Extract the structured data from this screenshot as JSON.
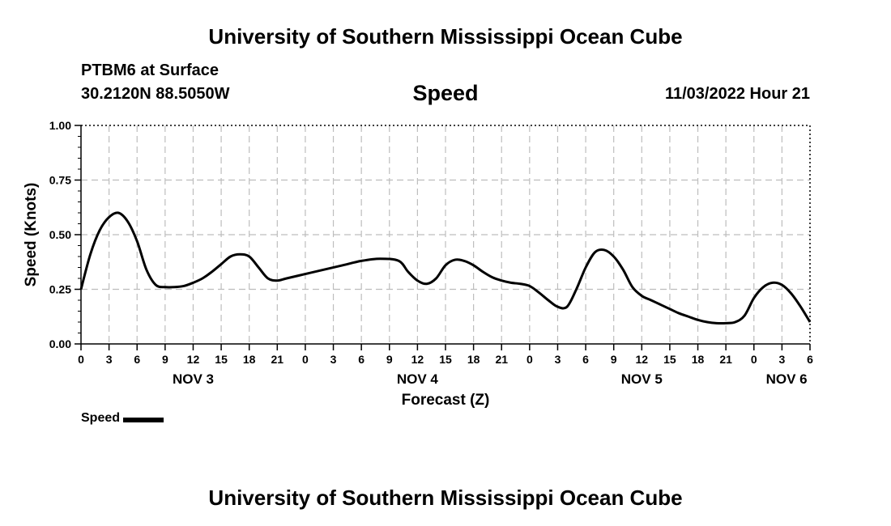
{
  "header": {
    "title": "University of Southern Mississippi Ocean Cube",
    "station": "PTBM6 at Surface",
    "coords": "30.2120N  88.5050W",
    "datetime": "11/03/2022 Hour 21"
  },
  "footer": {
    "title": "University of Southern Mississippi Ocean Cube"
  },
  "chart_data": {
    "type": "line",
    "title": "Speed",
    "xlabel": "Forecast (Z)",
    "ylabel": "Speed (Knots)",
    "ylim": [
      0,
      1
    ],
    "xlim": [
      0,
      78
    ],
    "yticks": [
      0,
      0.25,
      0.5,
      0.75,
      1
    ],
    "ytick_labels": [
      "0.00",
      "0.25",
      "0.50",
      "0.75",
      "1.00"
    ],
    "xticks": [
      0,
      3,
      6,
      9,
      12,
      15,
      18,
      21,
      24,
      27,
      30,
      33,
      36,
      39,
      42,
      45,
      48,
      51,
      54,
      57,
      60,
      63,
      66,
      69,
      72,
      75,
      78
    ],
    "xtick_labels": [
      "0",
      "3",
      "6",
      "9",
      "12",
      "15",
      "18",
      "21",
      "0",
      "3",
      "6",
      "9",
      "12",
      "15",
      "18",
      "21",
      "0",
      "3",
      "6",
      "9",
      "12",
      "15",
      "18",
      "21",
      "0",
      "3",
      "6"
    ],
    "day_labels": [
      {
        "label": "NOV 3",
        "at": 12
      },
      {
        "label": "NOV 4",
        "at": 36
      },
      {
        "label": "NOV 5",
        "at": 60
      },
      {
        "label": "NOV 6",
        "at": 75.5
      }
    ],
    "grid": true,
    "legend": "bottom-left",
    "series": [
      {
        "name": "Speed",
        "color": "#000000",
        "x": [
          0,
          1,
          2,
          3,
          4,
          5,
          6,
          7,
          8,
          9,
          10,
          11,
          12,
          13,
          14,
          15,
          16,
          17,
          18,
          19,
          20,
          21,
          22,
          24,
          26,
          28,
          30,
          32,
          34,
          35,
          36,
          37,
          38,
          39,
          40,
          41,
          42,
          43,
          44,
          45,
          46,
          47,
          48,
          49,
          50,
          51,
          52,
          53,
          54,
          55,
          56,
          57,
          58,
          59,
          60,
          61,
          62,
          63,
          64,
          65,
          66,
          67,
          68,
          69,
          70,
          71,
          72,
          73,
          74,
          75,
          76,
          77,
          78
        ],
        "values": [
          0.25,
          0.41,
          0.52,
          0.58,
          0.6,
          0.56,
          0.47,
          0.34,
          0.27,
          0.26,
          0.26,
          0.265,
          0.28,
          0.3,
          0.33,
          0.365,
          0.4,
          0.41,
          0.4,
          0.35,
          0.3,
          0.29,
          0.3,
          0.32,
          0.34,
          0.36,
          0.38,
          0.39,
          0.38,
          0.33,
          0.29,
          0.275,
          0.3,
          0.36,
          0.385,
          0.38,
          0.36,
          0.33,
          0.305,
          0.29,
          0.28,
          0.275,
          0.265,
          0.235,
          0.2,
          0.17,
          0.17,
          0.25,
          0.35,
          0.42,
          0.43,
          0.4,
          0.34,
          0.26,
          0.22,
          0.2,
          0.18,
          0.16,
          0.14,
          0.125,
          0.11,
          0.1,
          0.095,
          0.095,
          0.1,
          0.13,
          0.21,
          0.26,
          0.28,
          0.27,
          0.23,
          0.17,
          0.1
        ]
      }
    ]
  },
  "legend": {
    "label": "Speed"
  }
}
